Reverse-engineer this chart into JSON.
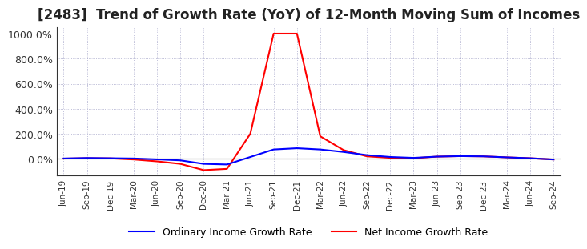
{
  "title": "[2483]  Trend of Growth Rate (YoY) of 12-Month Moving Sum of Incomes",
  "title_fontsize": 12,
  "ylim": [
    -130,
    1050
  ],
  "yticks": [
    0,
    200,
    400,
    600,
    800,
    1000
  ],
  "ytick_labels": [
    "0.0%",
    "200.0%",
    "400.0%",
    "600.0%",
    "800.0%",
    "1000.0%"
  ],
  "legend_labels": [
    "Ordinary Income Growth Rate",
    "Net Income Growth Rate"
  ],
  "legend_colors": [
    "#0000ff",
    "#ff0000"
  ],
  "x_labels": [
    "Jun-19",
    "Sep-19",
    "Dec-19",
    "Mar-20",
    "Jun-20",
    "Sep-20",
    "Dec-20",
    "Mar-21",
    "Jun-21",
    "Sep-21",
    "Dec-21",
    "Mar-22",
    "Jun-22",
    "Sep-22",
    "Dec-22",
    "Mar-23",
    "Jun-23",
    "Sep-23",
    "Dec-23",
    "Mar-24",
    "Jun-24",
    "Sep-24"
  ],
  "ordinary_income": [
    3,
    7,
    5,
    3,
    -4,
    -12,
    -40,
    -45,
    15,
    75,
    85,
    75,
    55,
    30,
    15,
    8,
    18,
    22,
    20,
    12,
    5,
    -5
  ],
  "net_income": [
    2,
    5,
    4,
    -5,
    -20,
    -40,
    -90,
    -80,
    200,
    1000,
    1000,
    180,
    70,
    20,
    8,
    5,
    18,
    22,
    20,
    12,
    5,
    -5
  ],
  "background_color": "#ffffff",
  "grid_color": "#aaaacc",
  "line_width": 1.5
}
